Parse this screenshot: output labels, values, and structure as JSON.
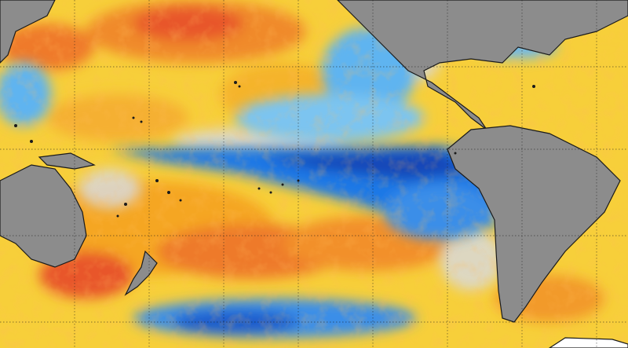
{
  "map": {
    "type": "sea-surface-temperature-anomaly",
    "region": "Pacific Ocean",
    "graticule": true,
    "colors": {
      "land": "#8c8c8c",
      "coastline": "#1a1a1a",
      "neutral": "#d9d9d9",
      "warm_light": "#f7d23c",
      "warm": "#f5a623",
      "warm_strong": "#e8562a",
      "cool_light": "#5fb4f0",
      "cool": "#1e78e6",
      "cool_strong": "#1246b8"
    }
  }
}
